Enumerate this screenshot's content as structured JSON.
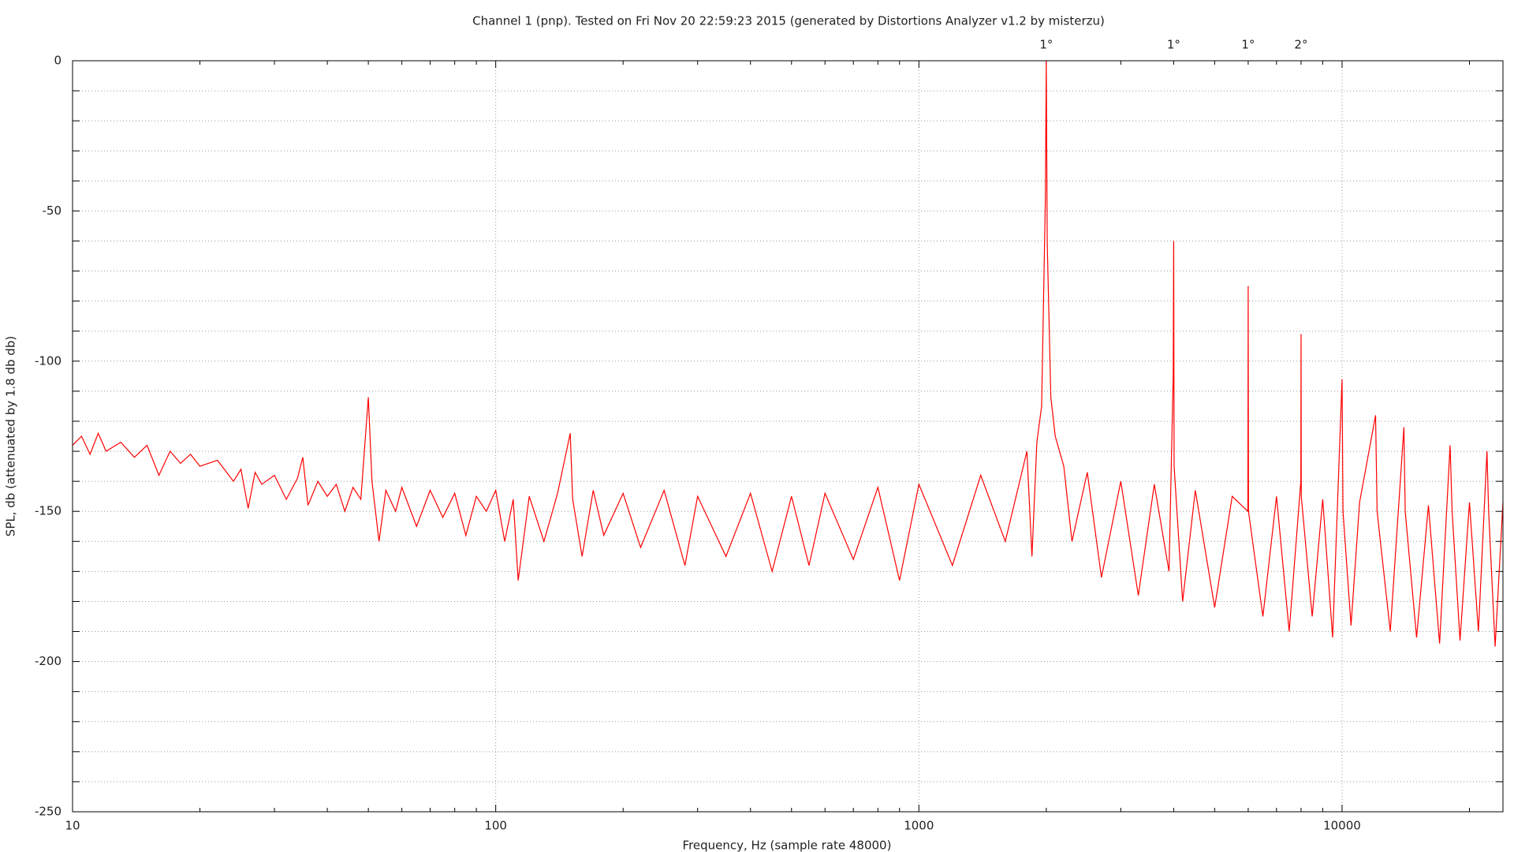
{
  "chart_data": {
    "type": "line",
    "title": "Channel 1 (pnp). Tested on Fri Nov 20 22:59:23 2015 (generated by Distortions Analyzer v1.2 by misterzu)",
    "xlabel": "Frequency, Hz (sample rate 48000)",
    "ylabel": "SPL, db (attenuated by 1.8 db db)",
    "xscale": "log",
    "grid": true,
    "color": "#ff0000",
    "xlim": [
      10,
      24000
    ],
    "xticks": [
      10,
      100,
      1000,
      10000
    ],
    "xminorticks": [
      20,
      30,
      40,
      50,
      60,
      70,
      80,
      90,
      200,
      300,
      400,
      500,
      600,
      700,
      800,
      900,
      2000,
      3000,
      4000,
      5000,
      6000,
      7000,
      8000,
      9000,
      20000
    ],
    "ylim": [
      -250,
      0
    ],
    "yticks": [
      -250,
      -200,
      -150,
      -100,
      -50,
      0
    ],
    "yminorticks": [
      -240,
      -230,
      -220,
      -210,
      -190,
      -180,
      -170,
      -160,
      -140,
      -130,
      -120,
      -110,
      -90,
      -80,
      -70,
      -60,
      -40,
      -30,
      -20,
      -10
    ],
    "annotations": [
      {
        "x": 2000,
        "label": "1°"
      },
      {
        "x": 4000,
        "label": "1°"
      },
      {
        "x": 6000,
        "label": "1°"
      },
      {
        "x": 8000,
        "label": "2°"
      }
    ],
    "x": [
      10,
      10.5,
      11,
      11.5,
      12,
      13,
      14,
      15,
      16,
      17,
      18,
      19,
      20,
      22,
      24,
      25,
      26,
      27,
      28,
      30,
      32,
      34,
      35,
      36,
      38,
      40,
      42,
      44,
      46,
      48,
      50,
      51,
      53,
      55,
      58,
      60,
      65,
      70,
      75,
      80,
      85,
      90,
      95,
      100,
      105,
      110,
      113,
      120,
      130,
      140,
      150,
      152,
      160,
      170,
      180,
      200,
      220,
      250,
      280,
      300,
      350,
      400,
      450,
      500,
      550,
      600,
      700,
      800,
      900,
      1000,
      1200,
      1400,
      1600,
      1800,
      1850,
      1900,
      1950,
      1990,
      2000,
      2010,
      2050,
      2100,
      2200,
      2300,
      2500,
      2700,
      3000,
      3300,
      3600,
      3900,
      3990,
      4000,
      4010,
      4200,
      4500,
      5000,
      5500,
      5990,
      6000,
      6010,
      6500,
      7000,
      7500,
      7990,
      8000,
      8010,
      8500,
      9000,
      9500,
      10000,
      10050,
      10500,
      11000,
      12000,
      12100,
      13000,
      14000,
      14100,
      15000,
      16000,
      17000,
      18000,
      18200,
      19000,
      20000,
      21000,
      22000,
      22200,
      23000,
      24000
    ],
    "values": [
      -128,
      -125,
      -131,
      -124,
      -130,
      -127,
      -132,
      -128,
      -138,
      -130,
      -134,
      -131,
      -135,
      -133,
      -140,
      -136,
      -149,
      -137,
      -141,
      -138,
      -146,
      -139,
      -132,
      -148,
      -140,
      -145,
      -141,
      -150,
      -142,
      -146,
      -112,
      -140,
      -160,
      -143,
      -150,
      -142,
      -155,
      -143,
      -152,
      -144,
      -158,
      -145,
      -150,
      -143,
      -160,
      -146,
      -173,
      -145,
      -160,
      -144,
      -124,
      -146,
      -165,
      -143,
      -158,
      -144,
      -162,
      -143,
      -168,
      -145,
      -165,
      -144,
      -170,
      -145,
      -168,
      -144,
      -166,
      -142,
      -173,
      -141,
      -168,
      -138,
      -160,
      -130,
      -165,
      -127,
      -115,
      -46,
      0,
      -60,
      -112,
      -125,
      -135,
      -160,
      -137,
      -172,
      -140,
      -178,
      -141,
      -170,
      -105,
      -60,
      -135,
      -180,
      -143,
      -182,
      -145,
      -150,
      -75,
      -150,
      -185,
      -145,
      -190,
      -140,
      -91,
      -145,
      -185,
      -146,
      -192,
      -106,
      -150,
      -188,
      -147,
      -118,
      -150,
      -190,
      -122,
      -150,
      -192,
      -148,
      -194,
      -128,
      -150,
      -193,
      -147,
      -190,
      -130,
      -150,
      -195,
      -147
    ]
  }
}
